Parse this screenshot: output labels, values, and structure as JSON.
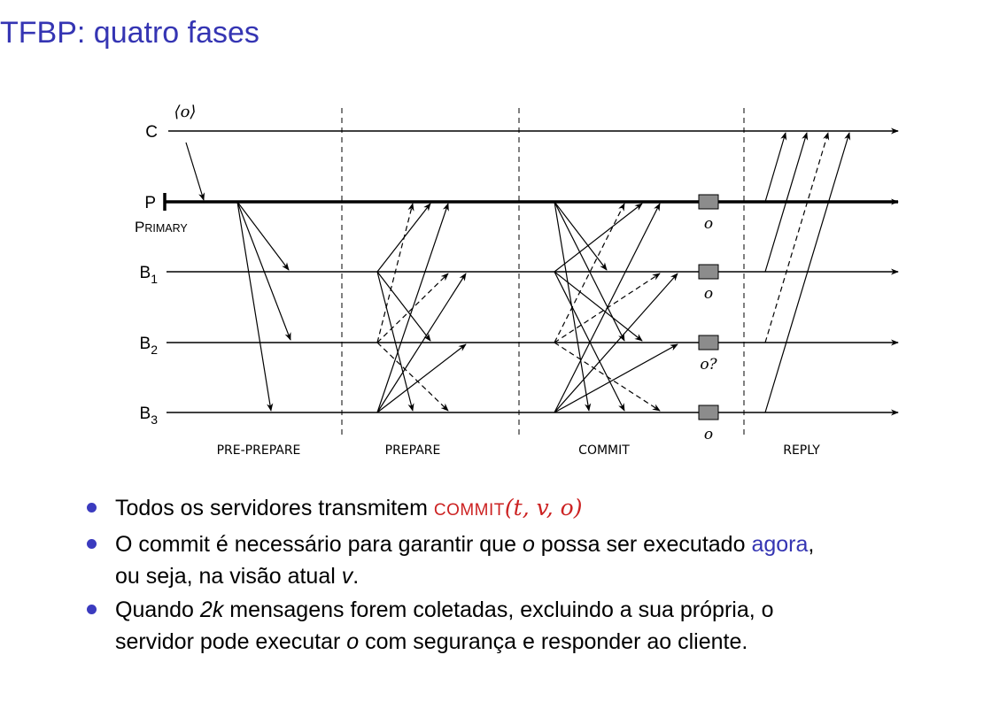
{
  "title": "TFBP: quatro fases",
  "diagram": {
    "message_label": "⟨o⟩",
    "lines": [
      {
        "id": "C",
        "label": "C",
        "sub": ""
      },
      {
        "id": "P",
        "label": "P",
        "sub": ""
      },
      {
        "id": "B1",
        "label": "B",
        "sub": "1"
      },
      {
        "id": "B2",
        "label": "B",
        "sub": "2"
      },
      {
        "id": "B3",
        "label": "B",
        "sub": "3"
      }
    ],
    "primary_label": "PRIMARY",
    "phases": [
      "PRE-PREPARE",
      "PREPARE",
      "COMMIT",
      "REPLY"
    ],
    "exec_labels": [
      "o",
      "o",
      "o?",
      "o"
    ]
  },
  "bullets": {
    "b1_text": "Todos os servidores transmitem ",
    "b1_msg": "COMMIT",
    "b1_args": "(t, v, o)",
    "b2_pre": "O commit é necessário para garantir que ",
    "b2_var": "o",
    "b2_mid": " possa ser executado ",
    "b2_link": "agora",
    "b2_post": ",",
    "b2_line2_pre": "ou seja, na visão atual ",
    "b2_line2_var": "v",
    "b2_line2_post": ".",
    "b3_pre": "Quando ",
    "b3_k": "2k",
    "b3_mid": " mensagens forem coletadas, excluindo a sua própria, o",
    "b3_line2_pre": "servidor pode executar ",
    "b3_line2_var": "o",
    "b3_line2_post": " com segurança e responder ao cliente."
  }
}
